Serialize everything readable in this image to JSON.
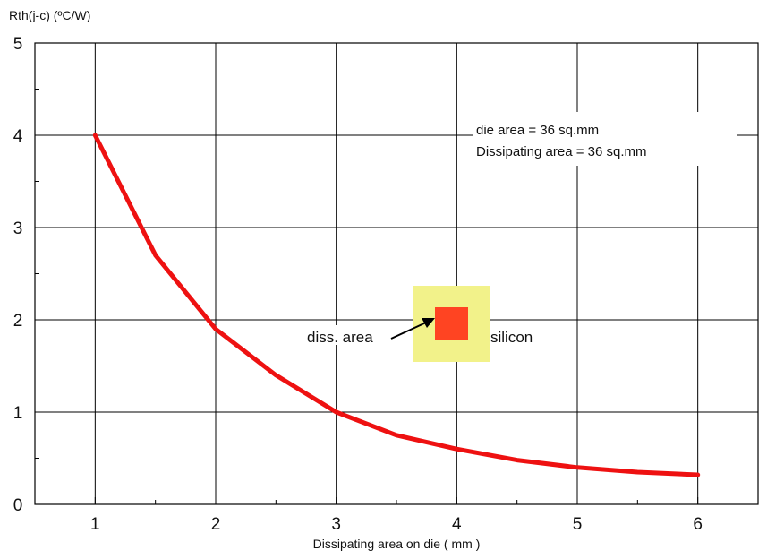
{
  "chart_data": {
    "type": "line",
    "title": "",
    "ylabel": "Rth(j-c) (ºC/W)",
    "xlabel": "Dissipating area on die ( mm )",
    "xlim": [
      0.5,
      6.5
    ],
    "ylim": [
      0,
      5
    ],
    "xticks": [
      1,
      2,
      3,
      4,
      5,
      6
    ],
    "yticks": [
      0,
      1,
      2,
      3,
      4,
      5
    ],
    "grid": true,
    "series": [
      {
        "color": "#ee1111",
        "x": [
          1,
          1.5,
          2,
          2.5,
          3,
          3.5,
          4,
          4.5,
          5,
          5.5,
          6
        ],
        "y": [
          4.0,
          2.7,
          1.9,
          1.4,
          1.0,
          0.75,
          0.6,
          0.48,
          0.4,
          0.35,
          0.32
        ]
      }
    ],
    "annotations": {
      "die_area": "die area = 36 sq.mm",
      "dissipating_area": "Dissipating area =  36 sq.mm"
    },
    "inset": {
      "diss_label": "diss. area",
      "silicon_label": "silicon",
      "silicon_color": "#f2f28a",
      "diss_color": "#ff4422"
    }
  }
}
